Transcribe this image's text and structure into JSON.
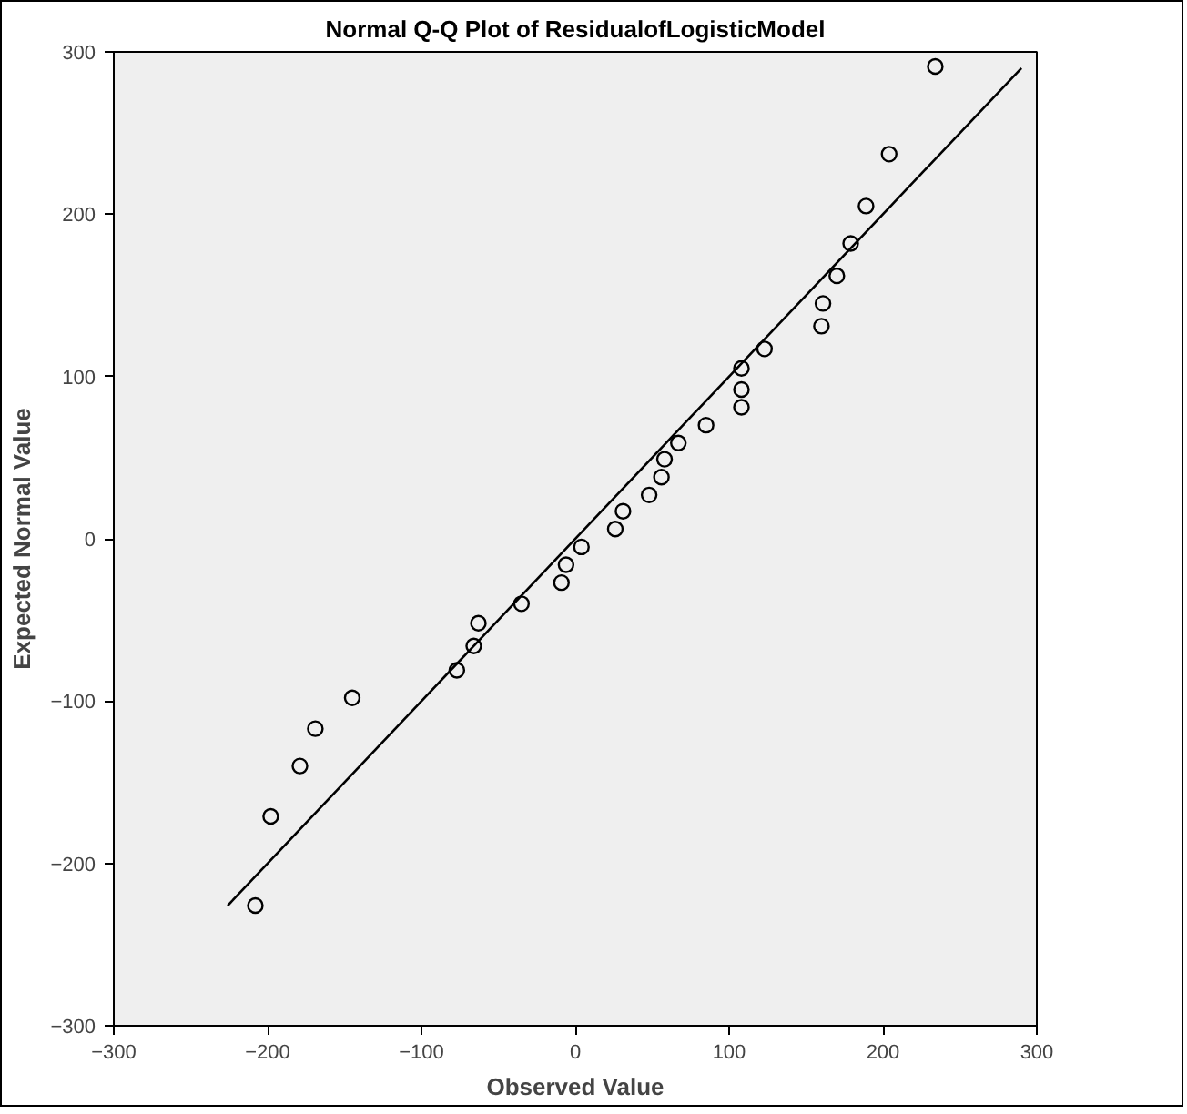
{
  "chart_data": {
    "type": "scatter",
    "title": "Normal Q-Q Plot of ResidualofLogisticModel",
    "xlabel": "Observed Value",
    "ylabel": "Expected Normal Value",
    "xlim": [
      -300,
      300
    ],
    "ylim": [
      -300,
      300
    ],
    "xticks": [
      -300,
      -200,
      -100,
      0,
      100,
      200,
      300
    ],
    "yticks": [
      -300,
      -200,
      -100,
      0,
      100,
      200,
      300
    ],
    "grid": false,
    "series": [
      {
        "marker": "circle",
        "color": "#000000",
        "x": [
          234,
          204,
          189,
          179,
          170,
          161,
          160,
          123,
          108,
          108,
          108,
          85,
          67,
          58,
          56,
          48,
          31,
          26,
          4,
          -6,
          -9,
          -35,
          -63,
          -66,
          -77,
          -145,
          -169,
          -179,
          -198,
          -208
        ],
        "values": [
          291,
          237,
          205,
          182,
          162,
          145,
          131,
          117,
          105,
          92,
          81,
          70,
          59,
          49,
          38,
          27,
          17,
          6,
          -5,
          -16,
          -27,
          -40,
          -52,
          -66,
          -81,
          -98,
          -117,
          -140,
          -171,
          -226
        ]
      },
      {
        "type": "line",
        "marker": "none",
        "color": "#000000",
        "x": [
          -226,
          290
        ],
        "values": [
          -226,
          290
        ]
      }
    ]
  }
}
